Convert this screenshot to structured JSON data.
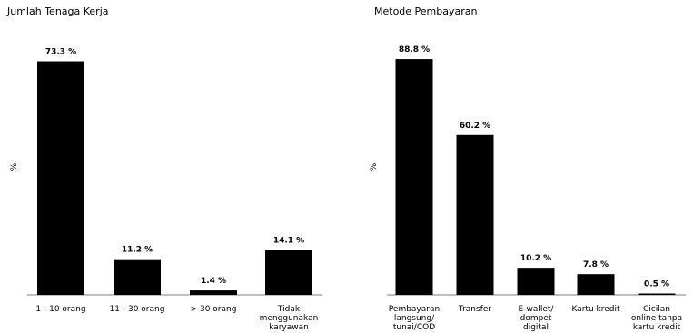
{
  "chart_data": [
    {
      "type": "bar",
      "title": "Jumlah Tenaga Kerja",
      "ylabel": "%",
      "categories": [
        "1 - 10 orang",
        "11 - 30 orang",
        "> 30 orang",
        "Tidak menggunakan karyawan"
      ],
      "values": [
        73.3,
        11.2,
        1.4,
        14.1
      ],
      "value_labels": [
        "73.3 %",
        "11.2 %",
        "1.4 %",
        "14.1 %"
      ],
      "ylim": [
        0,
        80
      ],
      "grid": false,
      "bar_color": "#000000"
    },
    {
      "type": "bar",
      "title": "Metode Pembayaran",
      "ylabel": "%",
      "categories": [
        "Pembayaran langsung/ tunai/COD",
        "Transfer",
        "E-wallet/ dompet digital",
        "Kartu kredit",
        "Cicilan online tanpa kartu kredit"
      ],
      "values": [
        88.8,
        60.2,
        10.2,
        7.8,
        0.5
      ],
      "value_labels": [
        "88.8 %",
        "60.2 %",
        "10.2 %",
        "7.8 %",
        "0.5 %"
      ],
      "ylim": [
        0,
        96
      ],
      "grid": false,
      "bar_color": "#000000"
    }
  ]
}
